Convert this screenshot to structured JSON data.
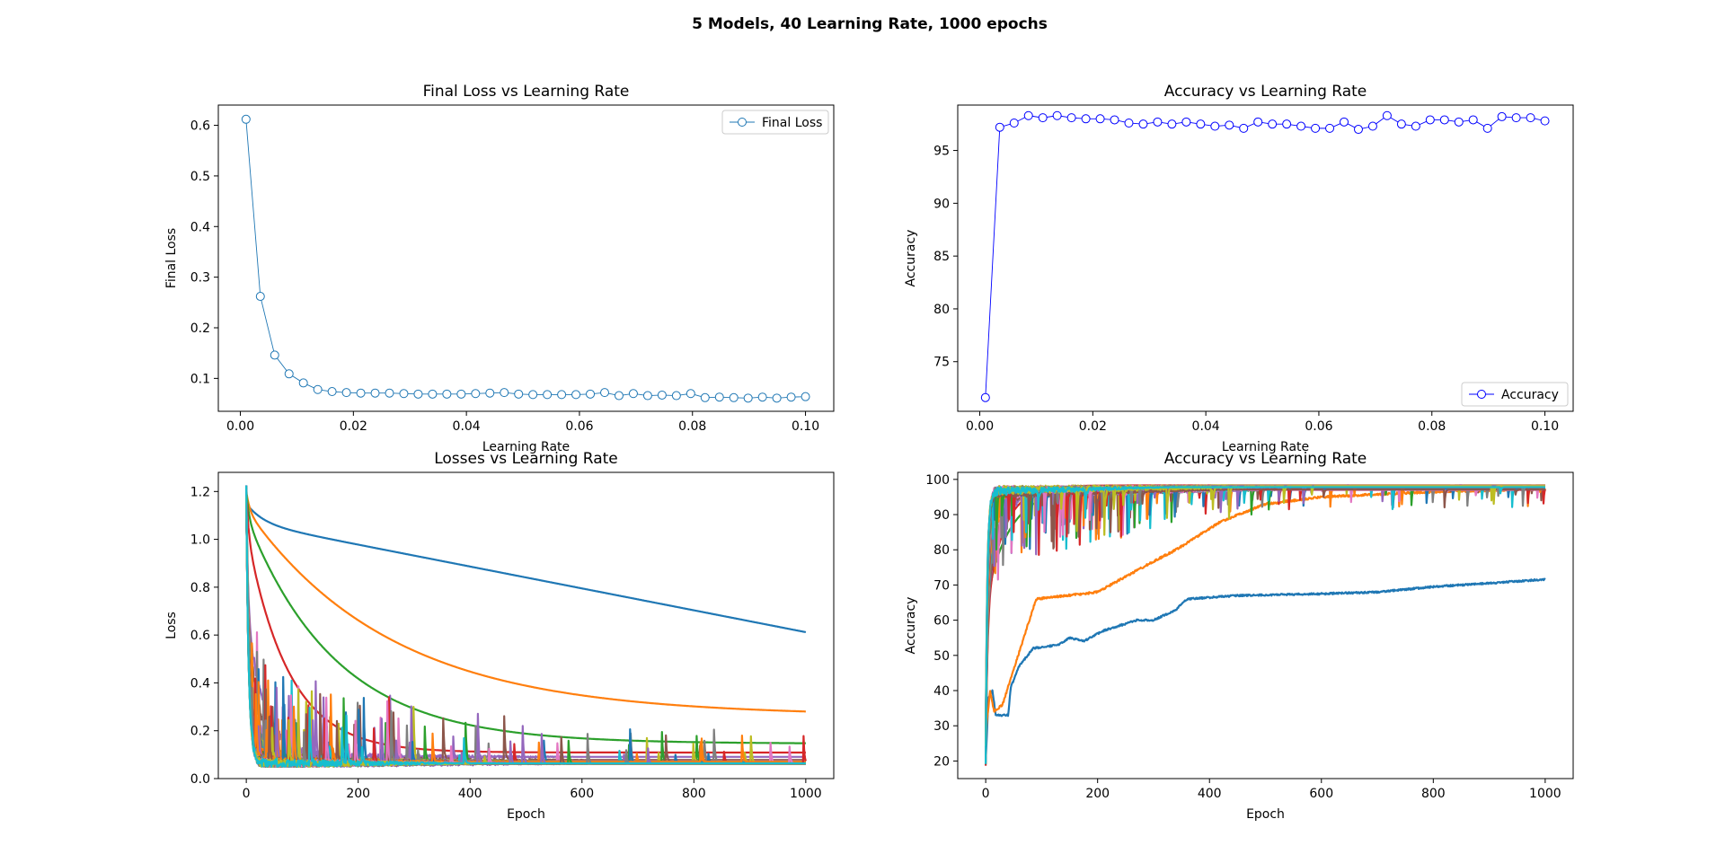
{
  "figure": {
    "suptitle": "5 Models, 40 Learning Rate, 1000 epochs"
  },
  "colors": {
    "final_loss": "#1f77b4",
    "accuracy": "#0000ff",
    "cycle": [
      "#1f77b4",
      "#ff7f0e",
      "#2ca02c",
      "#d62728",
      "#9467bd",
      "#8c564b",
      "#e377c2",
      "#7f7f7f",
      "#bcbd22",
      "#17becf"
    ]
  },
  "chart_data": [
    {
      "type": "line",
      "title": "Final Loss vs Learning Rate",
      "xlabel": "Learning Rate",
      "ylabel": "Final Loss",
      "xlim": [
        -0.0039,
        0.105
      ],
      "ylim": [
        0.035,
        0.64
      ],
      "xticks": [
        0.0,
        0.02,
        0.04,
        0.06,
        0.08,
        0.1
      ],
      "xtick_labels": [
        "0.00",
        "0.02",
        "0.04",
        "0.06",
        "0.08",
        "0.10"
      ],
      "yticks": [
        0.1,
        0.2,
        0.3,
        0.4,
        0.5,
        0.6
      ],
      "ytick_labels": [
        "0.1",
        "0.2",
        "0.3",
        "0.4",
        "0.5",
        "0.6"
      ],
      "legend": {
        "position": "top-right",
        "entries": [
          "Final Loss"
        ]
      },
      "x_start": 0.001,
      "x_end": 0.1,
      "n": 40,
      "series": [
        {
          "name": "Final Loss",
          "values": [
            0.612,
            0.262,
            0.146,
            0.109,
            0.091,
            0.078,
            0.074,
            0.072,
            0.071,
            0.071,
            0.071,
            0.07,
            0.069,
            0.069,
            0.069,
            0.069,
            0.07,
            0.071,
            0.072,
            0.069,
            0.068,
            0.068,
            0.068,
            0.068,
            0.069,
            0.072,
            0.066,
            0.07,
            0.066,
            0.067,
            0.066,
            0.07,
            0.062,
            0.063,
            0.062,
            0.061,
            0.063,
            0.061,
            0.063,
            0.064
          ]
        }
      ]
    },
    {
      "type": "line",
      "title": "Accuracy vs Learning Rate",
      "xlabel": "Learning Rate",
      "ylabel": "Accuracy",
      "xlim": [
        -0.0039,
        0.105
      ],
      "ylim": [
        70.3,
        99.3
      ],
      "xticks": [
        0.0,
        0.02,
        0.04,
        0.06,
        0.08,
        0.1
      ],
      "xtick_labels": [
        "0.00",
        "0.02",
        "0.04",
        "0.06",
        "0.08",
        "0.10"
      ],
      "yticks": [
        75,
        80,
        85,
        90,
        95
      ],
      "ytick_labels": [
        "75",
        "80",
        "85",
        "90",
        "95"
      ],
      "legend": {
        "position": "bottom-right",
        "entries": [
          "Accuracy"
        ]
      },
      "x_start": 0.001,
      "x_end": 0.1,
      "n": 40,
      "series": [
        {
          "name": "Accuracy",
          "values": [
            71.6,
            97.2,
            97.6,
            98.3,
            98.1,
            98.3,
            98.1,
            98.0,
            98.0,
            97.9,
            97.6,
            97.5,
            97.7,
            97.5,
            97.7,
            97.5,
            97.3,
            97.4,
            97.1,
            97.7,
            97.5,
            97.5,
            97.3,
            97.1,
            97.1,
            97.7,
            97.0,
            97.3,
            98.3,
            97.5,
            97.3,
            97.9,
            97.9,
            97.7,
            97.9,
            97.1,
            98.2,
            98.1,
            98.1,
            97.8
          ]
        }
      ]
    },
    {
      "type": "line",
      "title": "Losses vs Learning Rate",
      "xlabel": "Epoch",
      "ylabel": "Loss",
      "xlim": [
        -50,
        1050
      ],
      "ylim": [
        0.0,
        1.28
      ],
      "xticks": [
        0,
        200,
        400,
        600,
        800,
        1000
      ],
      "xtick_labels": [
        "0",
        "200",
        "400",
        "600",
        "800",
        "1000"
      ],
      "yticks": [
        0.0,
        0.2,
        0.4,
        0.6,
        0.8,
        1.0,
        1.2
      ],
      "ytick_labels": [
        "0.0",
        "0.2",
        "0.4",
        "0.6",
        "0.8",
        "1.0",
        "1.2"
      ],
      "epochs": 1000,
      "series_count": 40,
      "final_values": [
        0.612,
        0.262,
        0.146,
        0.109,
        0.091,
        0.078,
        0.074,
        0.072,
        0.071,
        0.071,
        0.071,
        0.07,
        0.069,
        0.069,
        0.069,
        0.069,
        0.07,
        0.071,
        0.072,
        0.069,
        0.068,
        0.068,
        0.068,
        0.068,
        0.069,
        0.072,
        0.066,
        0.07,
        0.066,
        0.067,
        0.066,
        0.07,
        0.062,
        0.063,
        0.062,
        0.061,
        0.063,
        0.061,
        0.063,
        0.064
      ]
    },
    {
      "type": "line",
      "title": "Accuracy vs Learning Rate",
      "xlabel": "Epoch",
      "ylabel": "Accuracy",
      "xlim": [
        -50,
        1050
      ],
      "ylim": [
        15.0,
        102.0
      ],
      "xticks": [
        0,
        200,
        400,
        600,
        800,
        1000
      ],
      "xtick_labels": [
        "0",
        "200",
        "400",
        "600",
        "800",
        "1000"
      ],
      "yticks": [
        20,
        30,
        40,
        50,
        60,
        70,
        80,
        90,
        100
      ],
      "ytick_labels": [
        "20",
        "30",
        "40",
        "50",
        "60",
        "70",
        "80",
        "90",
        "100"
      ],
      "epochs": 1000,
      "series_count": 40,
      "final_values": [
        71.6,
        97.2,
        97.6,
        98.3,
        98.1,
        98.3,
        98.1,
        98.0,
        98.0,
        97.9,
        97.6,
        97.5,
        97.7,
        97.5,
        97.7,
        97.5,
        97.3,
        97.4,
        97.1,
        97.7,
        97.5,
        97.5,
        97.3,
        97.1,
        97.1,
        97.7,
        97.0,
        97.3,
        98.3,
        97.5,
        97.3,
        97.9,
        97.9,
        97.7,
        97.9,
        97.1,
        98.2,
        98.1,
        98.1,
        97.8
      ]
    }
  ]
}
